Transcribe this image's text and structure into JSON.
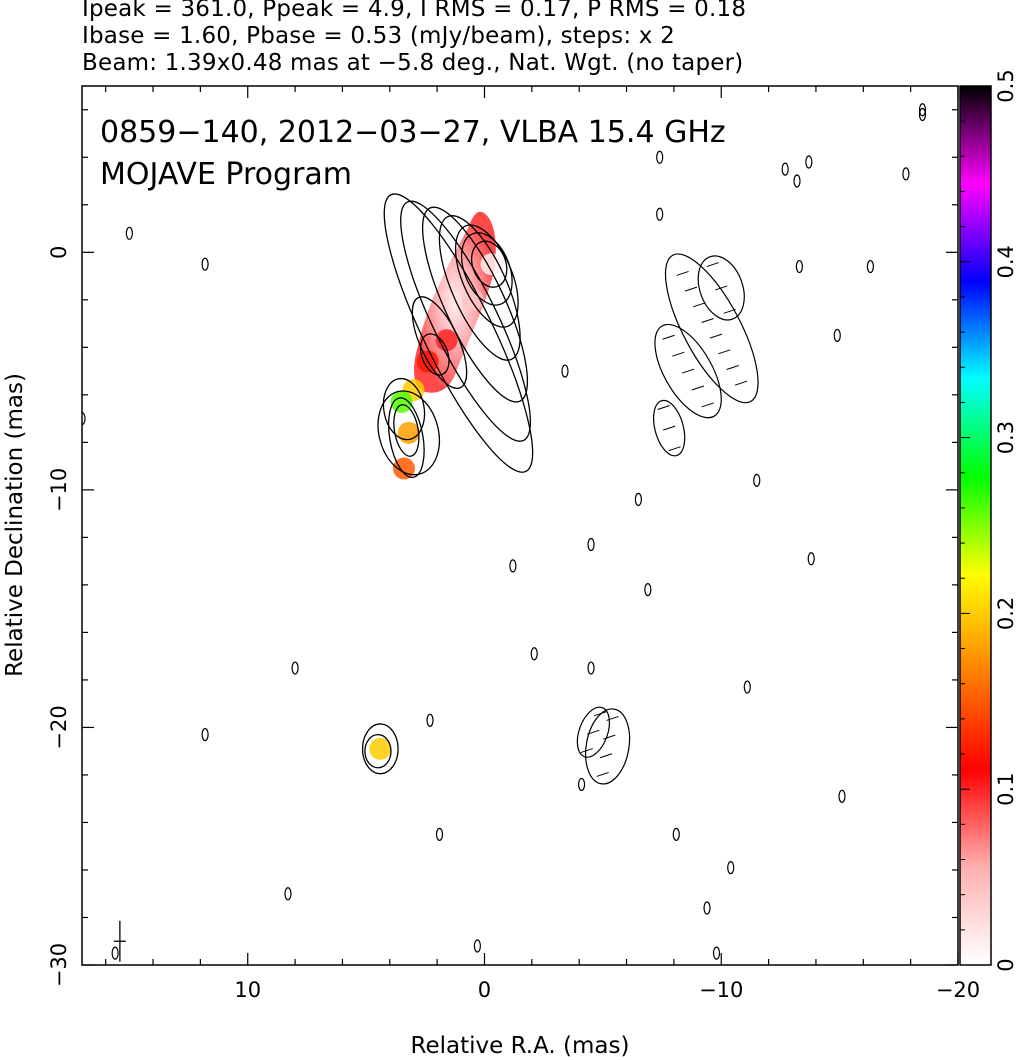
{
  "header": {
    "line1": "Ipeak = 361.0, Ppeak = 4.9, I RMS = 0.17, P RMS = 0.18",
    "line2": "Ibase = 1.60, Pbase = 0.53 (mJy/beam), steps: x 2",
    "line3": "Beam: 1.39x0.48 mas at −5.8 deg., Nat. Wgt. (no taper)"
  },
  "plot": {
    "title_line1": "0859−140, 2012−03−27, VLBA 15.4 GHz",
    "title_line2": "MOJAVE Program"
  },
  "chart_data": {
    "type": "heatmap",
    "title": "0859−140, 2012−03−27, VLBA 15.4 GHz",
    "subtitle": "MOJAVE Program",
    "xlabel": "Relative R.A. (mas)",
    "ylabel": "Relative Declination (mas)",
    "xlim": [
      17,
      -20
    ],
    "ylim": [
      -30,
      7
    ],
    "x_ticks": [
      10,
      0,
      -10,
      -20
    ],
    "x_tick_labels": [
      "10",
      "0",
      "−10",
      "−20"
    ],
    "y_ticks": [
      0,
      -10,
      -20,
      -30
    ],
    "y_tick_labels": [
      "0",
      "−10",
      "−20",
      "−30"
    ],
    "colorbar": {
      "range": [
        0,
        0.5
      ],
      "ticks": [
        0,
        0.1,
        0.2,
        0.3,
        0.4,
        0.5
      ],
      "tick_labels": [
        "0",
        "0.1",
        "0.2",
        "0.3",
        "0.4",
        "0.5"
      ],
      "colors": [
        "#ffffff",
        "#ffb0b0",
        "#ff0000",
        "#ff8000",
        "#ffff00",
        "#00ff00",
        "#00ffff",
        "#0000ff",
        "#ff00ff",
        "#000000"
      ]
    },
    "stokes_I_contours": {
      "core_jet": [
        {
          "x": -0.2,
          "y": -0.5,
          "a": 1.0,
          "b": 0.7,
          "angle": -20
        },
        {
          "x": -0.1,
          "y": -0.7,
          "a": 1.6,
          "b": 0.95,
          "angle": -22
        },
        {
          "x": -0.1,
          "y": -1.0,
          "a": 2.3,
          "b": 1.05,
          "angle": -23
        },
        {
          "x": 0.2,
          "y": -1.5,
          "a": 3.3,
          "b": 1.15,
          "angle": -24
        },
        {
          "x": 0.4,
          "y": -2.2,
          "a": 4.5,
          "b": 1.25,
          "angle": -25
        },
        {
          "x": 0.8,
          "y": -2.9,
          "a": 5.6,
          "b": 1.35,
          "angle": -26
        },
        {
          "x": 1.1,
          "y": -3.4,
          "a": 6.5,
          "b": 1.45,
          "angle": -26
        },
        {
          "x": 2.1,
          "y": -4.3,
          "a": 0.9,
          "b": 0.55,
          "angle": -20
        },
        {
          "x": 1.9,
          "y": -3.8,
          "a": 2.1,
          "b": 0.8,
          "angle": -25
        }
      ],
      "inner_knot": [
        {
          "x": 3.3,
          "y": -7.8,
          "a": 1.7,
          "b": 0.7,
          "angle": -10
        },
        {
          "x": 3.3,
          "y": -7.5,
          "a": 1.1,
          "b": 0.5,
          "angle": -10
        }
      ],
      "outer_jet": [
        {
          "x": 3.2,
          "y": -7.6,
          "a": 1.8,
          "b": 1.25,
          "angle": -15
        },
        {
          "x": 3.4,
          "y": -6.6,
          "a": 1.3,
          "b": 0.85,
          "angle": -10
        }
      ],
      "southern_feature": [
        {
          "x": 4.4,
          "y": -20.9,
          "a": 1.05,
          "b": 0.75,
          "angle": 0
        },
        {
          "x": 4.5,
          "y": -21.0,
          "a": 0.7,
          "b": 0.55,
          "angle": 0
        }
      ]
    },
    "fractional_pol_color": [
      {
        "x": -0.3,
        "y": -0.5,
        "value": 0.01
      },
      {
        "x": 0.5,
        "y": -2.0,
        "value": 0.04
      },
      {
        "x": 1.6,
        "y": -3.7,
        "value": 0.1
      },
      {
        "x": 2.4,
        "y": -4.6,
        "value": 0.12
      },
      {
        "x": 3.0,
        "y": -5.8,
        "value": 0.2
      },
      {
        "x": 3.5,
        "y": -6.3,
        "value": 0.26
      },
      {
        "x": 3.2,
        "y": -7.6,
        "value": 0.18
      },
      {
        "x": 3.4,
        "y": -9.1,
        "value": 0.15
      },
      {
        "x": 4.4,
        "y": -20.9,
        "value": 0.2
      }
    ],
    "noise_contours": [
      {
        "x": 15.0,
        "y": 0.8
      },
      {
        "x": 11.8,
        "y": -0.5
      },
      {
        "x": 17.0,
        "y": -7.0
      },
      {
        "x": 11.8,
        "y": -20.3
      },
      {
        "x": 8.0,
        "y": -17.5
      },
      {
        "x": 8.3,
        "y": -27.0
      },
      {
        "x": 2.3,
        "y": -19.7
      },
      {
        "x": 1.9,
        "y": -24.5
      },
      {
        "x": 15.6,
        "y": -29.5
      },
      {
        "x": -1.2,
        "y": -13.2
      },
      {
        "x": -2.1,
        "y": -16.9
      },
      {
        "x": 0.3,
        "y": -29.2
      },
      {
        "x": -3.4,
        "y": -5.0
      },
      {
        "x": -4.5,
        "y": -12.3
      },
      {
        "x": -4.5,
        "y": -17.5
      },
      {
        "x": -4.1,
        "y": -22.4
      },
      {
        "x": -6.5,
        "y": -10.4
      },
      {
        "x": -6.9,
        "y": -14.2
      },
      {
        "x": -7.4,
        "y": 4.0
      },
      {
        "x": -7.4,
        "y": 1.6
      },
      {
        "x": -8.1,
        "y": -24.5
      },
      {
        "x": -9.4,
        "y": -27.6
      },
      {
        "x": -9.8,
        "y": -29.5
      },
      {
        "x": -10.4,
        "y": -25.9
      },
      {
        "x": -11.1,
        "y": -18.3
      },
      {
        "x": -11.5,
        "y": -9.6
      },
      {
        "x": -12.7,
        "y": 3.5
      },
      {
        "x": -13.2,
        "y": 3.0
      },
      {
        "x": -13.3,
        "y": -0.6
      },
      {
        "x": -13.7,
        "y": 3.8
      },
      {
        "x": -13.8,
        "y": -12.9
      },
      {
        "x": -14.9,
        "y": -3.5
      },
      {
        "x": -15.1,
        "y": -22.9
      },
      {
        "x": -16.3,
        "y": -0.6
      },
      {
        "x": -17.8,
        "y": 3.3
      },
      {
        "x": -18.5,
        "y": 6.0
      },
      {
        "x": -18.5,
        "y": 5.8
      }
    ],
    "polarization_intensity_contours": [
      {
        "x": -10.0,
        "y": -1.5,
        "a": 1.4,
        "b": 0.9,
        "angle": -20
      },
      {
        "x": -9.6,
        "y": -3.2,
        "a": 3.5,
        "b": 1.2,
        "angle": -28
      },
      {
        "x": -8.6,
        "y": -5.0,
        "a": 2.2,
        "b": 1.0,
        "angle": -30
      },
      {
        "x": -7.8,
        "y": -7.4,
        "a": 1.2,
        "b": 0.6,
        "angle": -15
      },
      {
        "x": -5.2,
        "y": -20.8,
        "a": 1.6,
        "b": 0.9,
        "angle": 10
      },
      {
        "x": -4.6,
        "y": -20.2,
        "a": 1.1,
        "b": 0.6,
        "angle": 20
      }
    ],
    "beam": {
      "major_mas": 1.39,
      "minor_mas": 0.48,
      "pa_deg": -5.8,
      "x": 15.4,
      "y": -29.0
    }
  }
}
